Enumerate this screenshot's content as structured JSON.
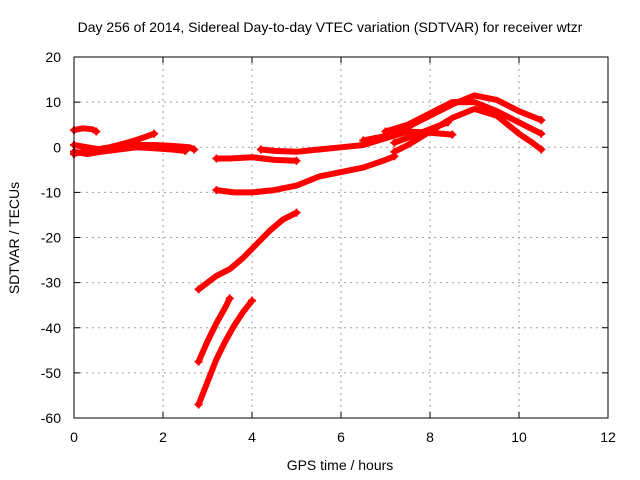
{
  "chart_data": {
    "type": "scatter",
    "title": "Day 256 of 2014, Sidereal Day-to-day VTEC variation (SDTVAR) for receiver wtzr",
    "xlabel": "GPS time / hours",
    "ylabel": "SDTVAR / TECUs",
    "xlim": [
      0,
      12
    ],
    "ylim": [
      -60,
      20
    ],
    "xticks": [
      0,
      2,
      4,
      6,
      8,
      10,
      12
    ],
    "yticks": [
      20,
      10,
      0,
      -10,
      -20,
      -30,
      -40,
      -50,
      -60
    ],
    "grid": true,
    "color": "#ff0000",
    "series": [
      {
        "x": [
          0.0,
          0.2,
          0.4,
          0.5
        ],
        "y": [
          3.8,
          4.2,
          4.0,
          3.5
        ]
      },
      {
        "x": [
          0.0,
          0.2,
          0.5,
          0.8,
          1.0,
          1.2,
          1.4,
          1.6,
          1.8
        ],
        "y": [
          -1.5,
          -1.0,
          -0.5,
          0.0,
          0.5,
          1.0,
          1.6,
          2.3,
          3.0
        ]
      },
      {
        "x": [
          0.0,
          0.3,
          0.6,
          1.0,
          1.4,
          1.8,
          2.2,
          2.6,
          2.7
        ],
        "y": [
          0.5,
          0.0,
          -0.5,
          0.0,
          0.5,
          0.5,
          0.3,
          0.0,
          -0.5
        ]
      },
      {
        "x": [
          0.0,
          0.3,
          0.6,
          1.0,
          1.4,
          1.8,
          2.2,
          2.5
        ],
        "y": [
          -1.0,
          -1.5,
          -1.0,
          -0.5,
          0.0,
          -0.2,
          -0.5,
          -0.8
        ]
      },
      {
        "x": [
          3.2,
          3.5,
          4.0,
          4.5,
          5.0
        ],
        "y": [
          -2.5,
          -2.5,
          -2.2,
          -2.8,
          -3.0
        ]
      },
      {
        "x": [
          4.2,
          4.5,
          5.0,
          5.5,
          6.0,
          6.5,
          7.0,
          7.5,
          8.0,
          8.5
        ],
        "y": [
          -0.5,
          -0.8,
          -1.0,
          -0.5,
          0.0,
          0.5,
          2.0,
          3.5,
          3.2,
          2.8
        ]
      },
      {
        "x": [
          3.2,
          3.6,
          4.0,
          4.5,
          5.0,
          5.5,
          6.0,
          6.5,
          7.0,
          7.2
        ],
        "y": [
          -9.5,
          -10.0,
          -10.0,
          -9.5,
          -8.5,
          -6.5,
          -5.5,
          -4.5,
          -2.8,
          -2.0
        ]
      },
      {
        "x": [
          2.8,
          3.0,
          3.2,
          3.5,
          3.8,
          4.1,
          4.4,
          4.7,
          5.0
        ],
        "y": [
          -31.5,
          -30.0,
          -28.5,
          -27.0,
          -24.5,
          -21.5,
          -18.5,
          -16.0,
          -14.5
        ]
      },
      {
        "x": [
          2.8,
          3.0,
          3.2,
          3.4,
          3.5
        ],
        "y": [
          -47.5,
          -43.0,
          -39.0,
          -35.5,
          -33.5
        ]
      },
      {
        "x": [
          2.8,
          3.0,
          3.2,
          3.4,
          3.6,
          3.8,
          4.0
        ],
        "y": [
          -57.0,
          -52.0,
          -47.0,
          -43.0,
          -39.5,
          -36.5,
          -34.0
        ]
      },
      {
        "x": [
          6.5,
          7.0,
          7.5,
          8.0,
          8.5,
          9.0,
          9.5,
          10.0,
          10.5
        ],
        "y": [
          1.5,
          2.5,
          4.5,
          7.0,
          9.5,
          11.5,
          10.5,
          8.0,
          6.0
        ]
      },
      {
        "x": [
          7.0,
          7.5,
          8.0,
          8.5,
          9.0,
          9.5,
          10.0,
          10.3,
          10.5
        ],
        "y": [
          3.5,
          5.0,
          7.5,
          10.0,
          10.0,
          8.0,
          5.5,
          4.0,
          3.0
        ]
      },
      {
        "x": [
          7.2,
          7.5,
          8.0,
          8.5,
          9.0,
          9.5,
          10.0,
          10.3,
          10.5
        ],
        "y": [
          -1.0,
          0.5,
          3.5,
          6.5,
          8.5,
          7.0,
          3.0,
          1.0,
          -0.5
        ]
      },
      {
        "x": [
          7.2,
          7.6,
          8.0,
          8.4
        ],
        "y": [
          1.0,
          2.5,
          4.0,
          5.5
        ]
      }
    ]
  }
}
